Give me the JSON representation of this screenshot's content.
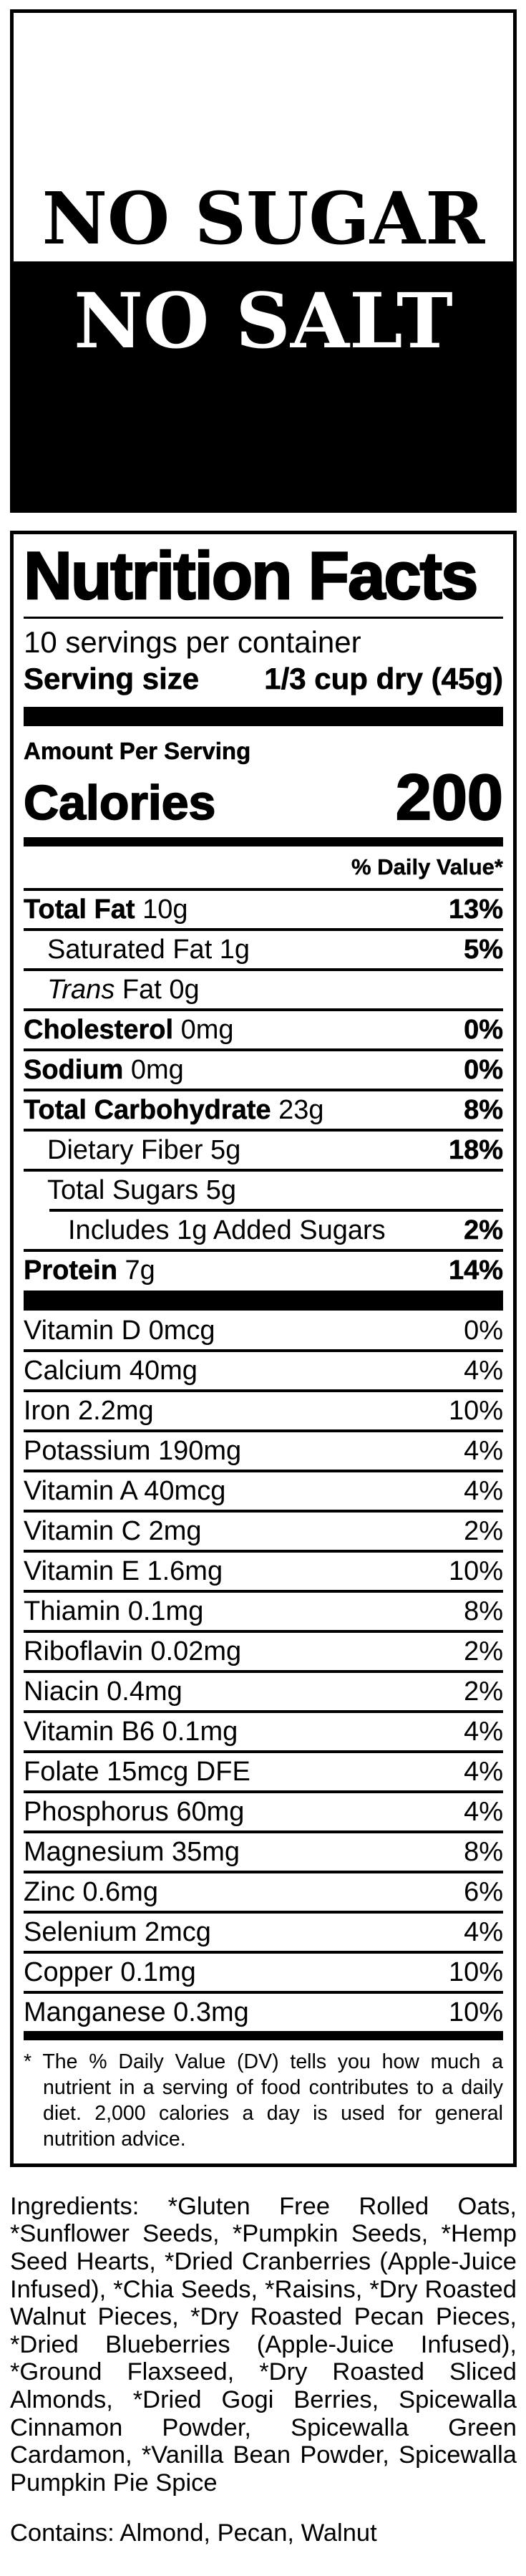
{
  "colors": {
    "ink": "#000000",
    "paper": "#ffffff"
  },
  "banner": {
    "line1": "NO SUGAR",
    "line2": "NO SALT"
  },
  "label": {
    "title": "Nutrition Facts",
    "servings_per_container": "10 servings per container",
    "serving_size_label": "Serving size",
    "serving_size_value": "1/3 cup dry (45g)",
    "amount_per_serving": "Amount Per Serving",
    "calories_label": "Calories",
    "calories_value": "200",
    "daily_value_header": "% Daily Value*",
    "main_rows": [
      {
        "bold": "Total Fat",
        "text": " 10g",
        "dv": "13%",
        "indent": 0
      },
      {
        "text": "Saturated Fat 1g",
        "dv": "5%",
        "indent": 1
      },
      {
        "italic": "Trans",
        "text": " Fat 0g",
        "dv": "",
        "indent": 1
      },
      {
        "bold": "Cholesterol",
        "text": " 0mg",
        "dv": "0%",
        "indent": 0
      },
      {
        "bold": "Sodium",
        "text": " 0mg",
        "dv": "0%",
        "indent": 0
      },
      {
        "bold": "Total Carbohydrate",
        "text": " 23g",
        "dv": "8%",
        "indent": 0
      },
      {
        "text": "Dietary Fiber 5g",
        "dv": "18%",
        "indent": 1
      },
      {
        "text": "Total Sugars 5g",
        "dv": "",
        "indent": 1
      },
      {
        "text": "Includes 1g Added Sugars",
        "dv": "2%",
        "indent": 2,
        "sep_indent": true
      },
      {
        "bold": "Protein",
        "text": " 7g",
        "dv": "14%",
        "indent": 0
      }
    ],
    "vitamin_rows": [
      {
        "text": "Vitamin D 0mcg",
        "dv": "0%"
      },
      {
        "text": "Calcium 40mg",
        "dv": "4%"
      },
      {
        "text": "Iron 2.2mg",
        "dv": "10%"
      },
      {
        "text": "Potassium 190mg",
        "dv": "4%"
      },
      {
        "text": "Vitamin A 40mcg",
        "dv": "4%"
      },
      {
        "text": "Vitamin C 2mg",
        "dv": "2%"
      },
      {
        "text": "Vitamin E 1.6mg",
        "dv": "10%"
      },
      {
        "text": "Thiamin 0.1mg",
        "dv": "8%"
      },
      {
        "text": "Riboflavin 0.02mg",
        "dv": "2%"
      },
      {
        "text": "Niacin 0.4mg",
        "dv": "2%"
      },
      {
        "text": "Vitamin B6 0.1mg",
        "dv": "4%"
      },
      {
        "text": "Folate 15mcg DFE",
        "dv": "4%"
      },
      {
        "text": "Phosphorus 60mg",
        "dv": "4%"
      },
      {
        "text": "Magnesium 35mg",
        "dv": "8%"
      },
      {
        "text": "Zinc 0.6mg",
        "dv": "6%"
      },
      {
        "text": "Selenium 2mcg",
        "dv": "4%"
      },
      {
        "text": "Copper 0.1mg",
        "dv": "10%"
      },
      {
        "text": "Manganese 0.3mg",
        "dv": "10%"
      }
    ],
    "footnote": "* The % Daily Value (DV) tells you how much a nutrient in a serving of food contributes to a daily diet. 2,000 calories a day is used for general nutrition advice."
  },
  "ingredients": "Ingredients: *Gluten Free Rolled Oats, *Sunflower Seeds, *Pumpkin Seeds, *Hemp Seed Hearts, *Dried Cranberries (Apple-Juice Infused), *Chia Seeds, *Raisins, *Dry Roasted Walnut Pieces, *Dry Roasted Pecan Pieces, *Dried Blueberries (Apple-Juice Infused), *Ground Flaxseed, *Dry Roasted Sliced Almonds, *Dried Gogi Berries, Spicewalla Cinnamon Powder, Spicewalla Green Cardamon, *Vanilla Bean Powder, Spicewalla Pumpkin Pie Spice",
  "contains": "Contains: Almond, Pecan, Walnut"
}
